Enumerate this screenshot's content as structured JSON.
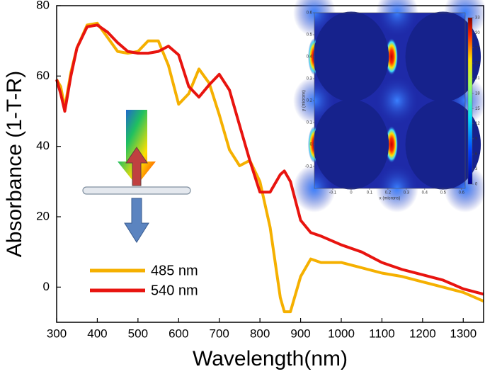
{
  "chart_data": [
    {
      "type": "line",
      "x_label": "Wavelength(nm)",
      "y_label": "Absorbance (1-T-R)",
      "x": [
        300,
        310,
        320,
        335,
        350,
        375,
        400,
        425,
        450,
        475,
        500,
        525,
        550,
        575,
        600,
        625,
        650,
        675,
        700,
        725,
        750,
        775,
        800,
        825,
        850,
        860,
        875,
        900,
        925,
        950,
        1000,
        1050,
        1100,
        1150,
        1200,
        1250,
        1300,
        1350
      ],
      "series": [
        {
          "name": "485 nm",
          "color": "#f5b000",
          "values": [
            59,
            57,
            51,
            61,
            68,
            74.5,
            75,
            71,
            67,
            66.5,
            67,
            70,
            70,
            63,
            52,
            55,
            62,
            58,
            49,
            39,
            34.5,
            36,
            30,
            17,
            -3,
            -7,
            -7,
            3,
            8,
            7,
            7,
            5.5,
            4,
            3,
            1.5,
            0,
            -1.5,
            -4
          ]
        },
        {
          "name": "540 nm",
          "color": "#e8140f",
          "values": [
            59,
            55,
            50,
            60,
            68,
            74,
            74.5,
            72.5,
            69.5,
            67,
            66.5,
            66.5,
            67,
            68.5,
            66,
            57,
            54,
            57.5,
            60.5,
            56,
            46,
            36,
            27,
            27,
            32,
            33,
            30,
            19,
            15.5,
            14.5,
            12,
            10,
            7,
            5,
            3.5,
            2,
            -0.5,
            -2
          ]
        }
      ],
      "xlim": [
        300,
        1350
      ],
      "xticks": [
        300,
        400,
        500,
        600,
        700,
        800,
        900,
        1000,
        1100,
        1200,
        1300
      ],
      "ylim": [
        -10,
        80
      ],
      "yticks": [
        0,
        20,
        40,
        60,
        80
      ],
      "legend": "lower left"
    },
    {
      "type": "heatmap",
      "x_label": "x (microns)",
      "y_label": "y (microns)",
      "xlim": [
        -0.2,
        0.62
      ],
      "xticks": [
        -0.1,
        0,
        0.1,
        0.2,
        0.3,
        0.4,
        0.5,
        0.6
      ],
      "ylim": [
        -0.2,
        0.6
      ],
      "yticks": [
        -0.1,
        0,
        0.1,
        0.2,
        0.3,
        0.4,
        0.5,
        0.6
      ],
      "colorbar_lim": [
        0,
        33
      ],
      "colorbar_ticks": [
        0,
        3,
        6,
        9,
        12,
        15,
        18,
        21,
        24,
        27,
        30,
        33
      ]
    }
  ]
}
